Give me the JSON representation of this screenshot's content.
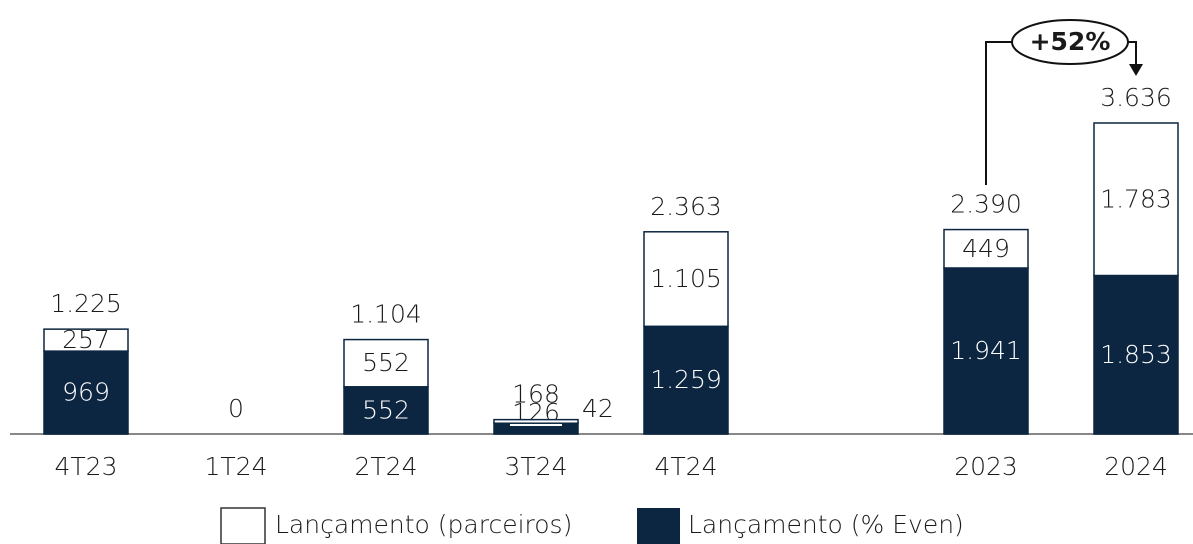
{
  "chart_data": {
    "type": "stacked_bar",
    "categories": [
      "4T23",
      "1T24",
      "2T24",
      "3T24",
      "4T24",
      "2023",
      "2024"
    ],
    "series": [
      {
        "name": "Lançamento (% Even)",
        "color": "#0c2641",
        "values": [
          969,
          0,
          552,
          126,
          1259,
          1941,
          1853
        ],
        "value_labels": [
          "969",
          null,
          "552",
          "126",
          "1.259",
          "1.941",
          "1.853"
        ]
      },
      {
        "name": "Lançamento (parceiros)",
        "color": "#ffffff",
        "values": [
          257,
          0,
          552,
          42,
          1105,
          449,
          1783
        ],
        "value_labels": [
          "257",
          null,
          "552",
          "42",
          "1.105",
          "449",
          "1.783"
        ]
      }
    ],
    "totals": {
      "values": [
        1225,
        0,
        1104,
        168,
        2363,
        2390,
        3636
      ],
      "value_labels": [
        "1.225",
        "0",
        "1.104",
        "168",
        "2.363",
        "2.390",
        "3.636"
      ]
    },
    "annotation": "+52%"
  }
}
